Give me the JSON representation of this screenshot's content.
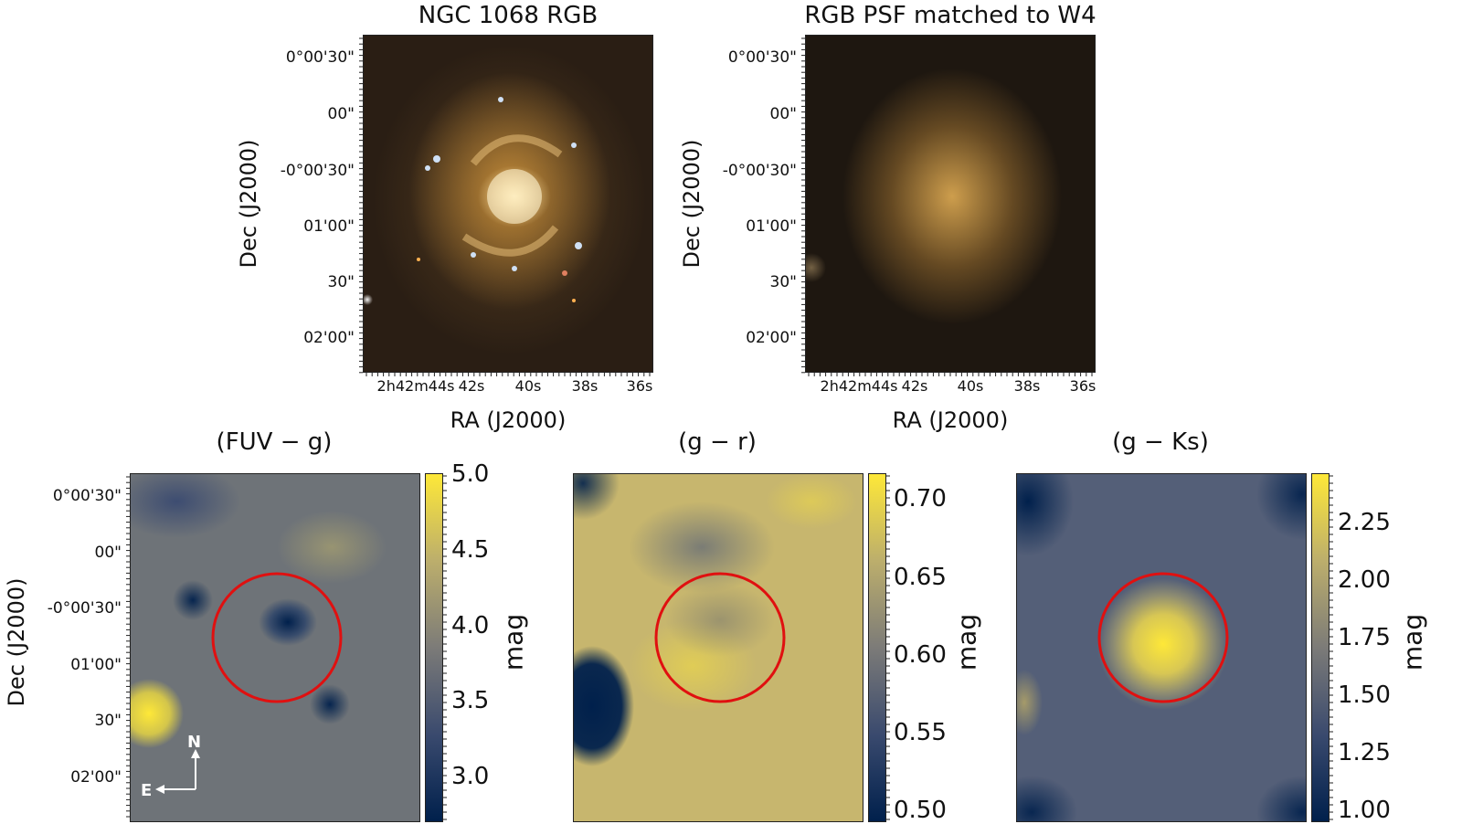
{
  "top_panels": [
    {
      "title": "NGC 1068 RGB",
      "yticks": [
        "0°00'30\"",
        "00\"",
        "-0°00'30\"",
        "01'00\"",
        "30\"",
        "02'00\""
      ],
      "xticks": [
        "2h42m44s",
        "42s",
        "40s",
        "38s",
        "36s"
      ],
      "ylabel": "Dec (J2000)",
      "xlabel": "RA (J2000)"
    },
    {
      "title": "RGB PSF matched to W4",
      "yticks": [
        "0°00'30\"",
        "00\"",
        "-0°00'30\"",
        "01'00\"",
        "30\"",
        "02'00\""
      ],
      "xticks": [
        "2h42m44s",
        "42s",
        "40s",
        "38s",
        "36s"
      ],
      "ylabel": "Dec (J2000)",
      "xlabel": "RA (J2000)"
    }
  ],
  "bottom_panels": [
    {
      "title": "(FUV − g)",
      "ylabel": "Dec (J2000)",
      "yticks": [
        "0°00'30\"",
        "00\"",
        "-0°00'30\"",
        "01'00\"",
        "30\"",
        "02'00\""
      ],
      "colorbar_ticks": [
        "5.0",
        "4.5",
        "4.0",
        "3.5",
        "3.0"
      ],
      "colorbar_label": "mag",
      "compass": {
        "north": "N",
        "east": "E"
      }
    },
    {
      "title": "(g − r)",
      "colorbar_ticks": [
        "0.70",
        "0.65",
        "0.60",
        "0.55",
        "0.50"
      ],
      "colorbar_label": "mag"
    },
    {
      "title": "(g − Ks)",
      "colorbar_ticks": [
        "2.25",
        "2.00",
        "1.75",
        "1.50",
        "1.25",
        "1.00"
      ],
      "colorbar_label": "mag"
    }
  ],
  "colors": {
    "circle": "#e01010",
    "colormap_low": "#00204c",
    "colormap_mid": "#7c7b78",
    "colormap_high": "#fee838"
  }
}
